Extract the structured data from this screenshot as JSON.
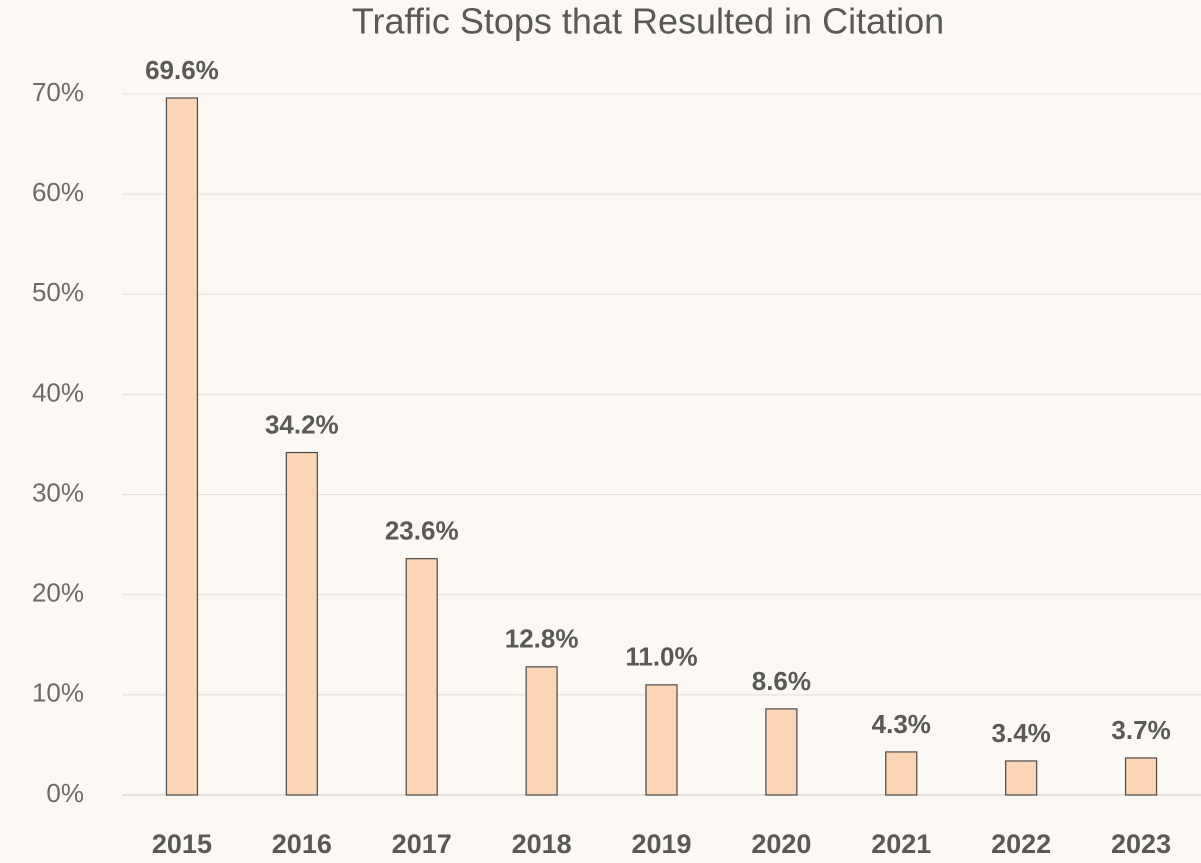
{
  "chart_data": {
    "type": "bar",
    "title": "Traffic Stops that Resulted in Citation",
    "categories": [
      "2015",
      "2016",
      "2017",
      "2018",
      "2019",
      "2020",
      "2021",
      "2022",
      "2023"
    ],
    "values": [
      69.6,
      34.2,
      23.6,
      12.8,
      11.0,
      8.6,
      4.3,
      3.4,
      3.7
    ],
    "value_labels": [
      "69.6%",
      "34.2%",
      "23.6%",
      "12.8%",
      "11.0%",
      "8.6%",
      "4.3%",
      "3.4%",
      "3.7%"
    ],
    "color": "#fcd5b5",
    "ylim": [
      0,
      70
    ],
    "yticks": [
      {
        "value": 0,
        "label": "0%"
      },
      {
        "value": 10,
        "label": "10%"
      },
      {
        "value": 20,
        "label": "20%"
      },
      {
        "value": 30,
        "label": "30%"
      },
      {
        "value": 40,
        "label": "40%"
      },
      {
        "value": 50,
        "label": "50%"
      },
      {
        "value": 60,
        "label": "60%"
      },
      {
        "value": 70,
        "label": "70%"
      }
    ],
    "grid": true
  }
}
